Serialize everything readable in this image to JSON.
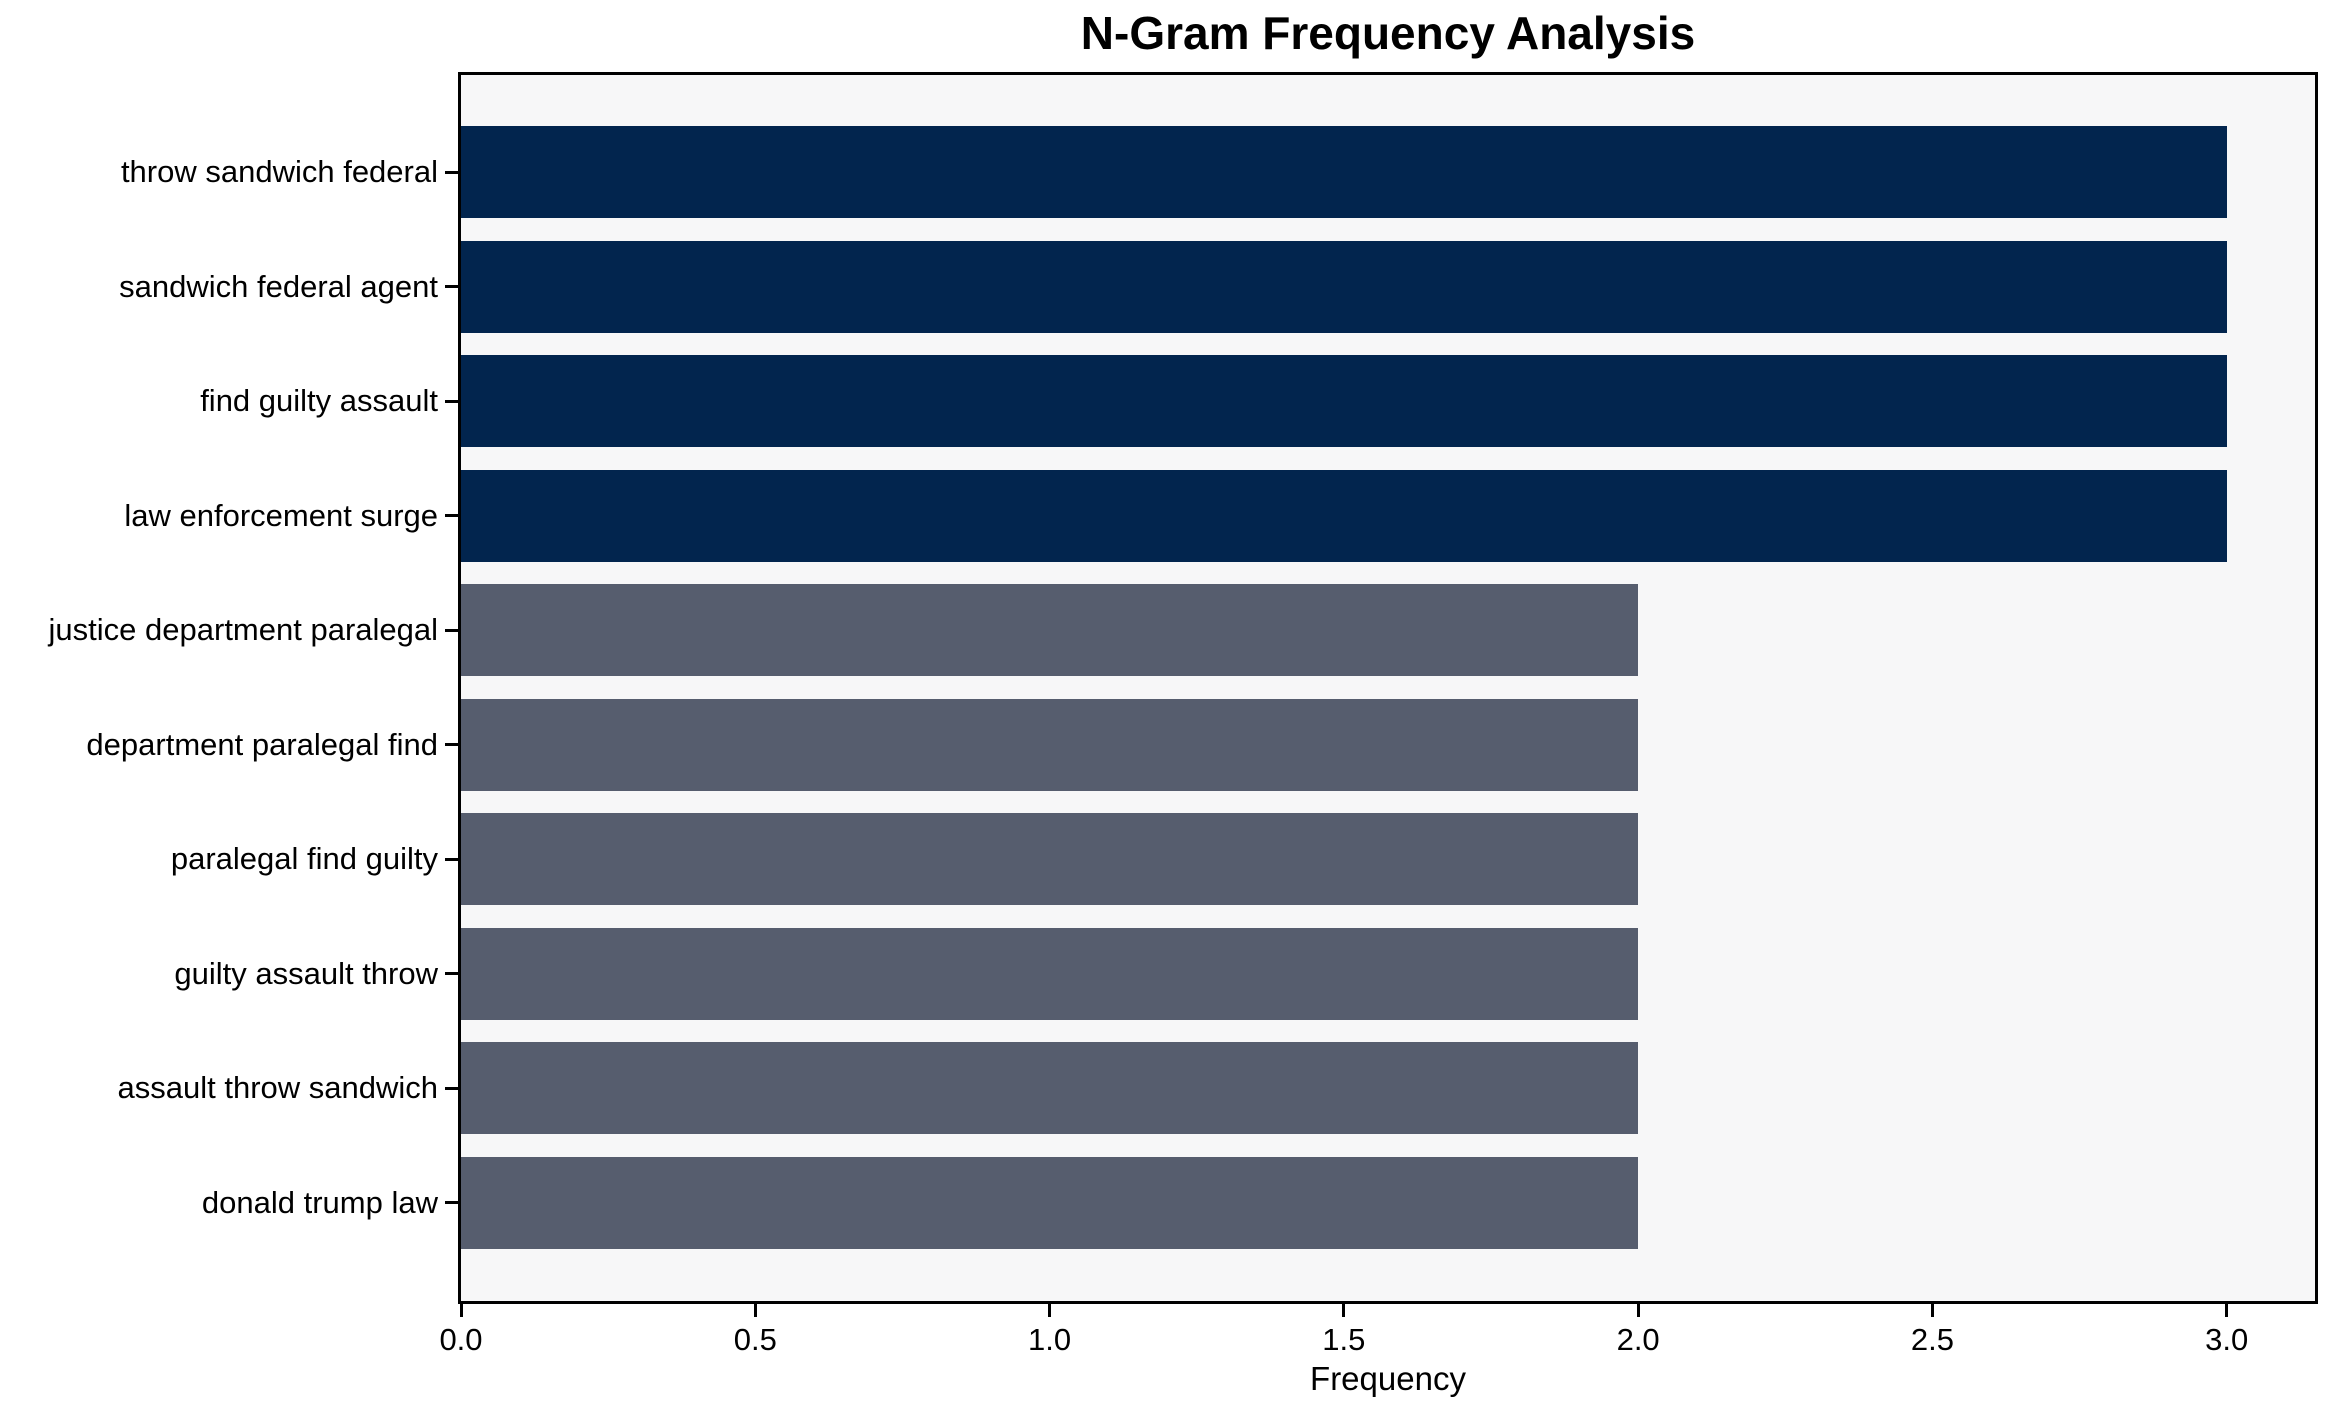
{
  "chart_data": {
    "type": "bar",
    "orientation": "horizontal",
    "title": "N-Gram Frequency Analysis",
    "xlabel": "Frequency",
    "ylabel": "",
    "categories": [
      "throw sandwich federal",
      "sandwich federal agent",
      "find guilty assault",
      "law enforcement surge",
      "justice department paralegal",
      "department paralegal find",
      "paralegal find guilty",
      "guilty assault throw",
      "assault throw sandwich",
      "donald trump law"
    ],
    "values": [
      3,
      3,
      3,
      3,
      2,
      2,
      2,
      2,
      2,
      2
    ],
    "bar_colors": [
      "#02254e",
      "#02254e",
      "#02254e",
      "#02254e",
      "#565d6e",
      "#565d6e",
      "#565d6e",
      "#565d6e",
      "#565d6e",
      "#565d6e"
    ],
    "xlim": [
      0,
      3.15
    ],
    "xticks": [
      0,
      0.5,
      1,
      1.5,
      2,
      2.5,
      3
    ],
    "xtick_labels": [
      "0.0",
      "0.5",
      "1.0",
      "1.5",
      "2.0",
      "2.5",
      "3.0"
    ],
    "grid": false,
    "legend_position": "none",
    "plot_background": "#f7f7f8",
    "figure_background": "#ffffff",
    "axis_color": "#000000"
  }
}
